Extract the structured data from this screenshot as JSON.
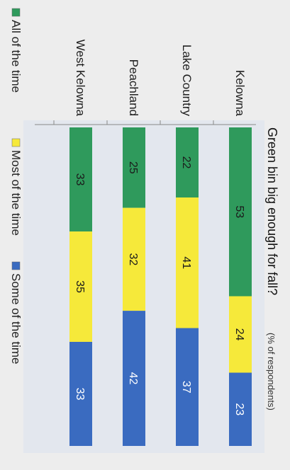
{
  "chart_data": {
    "type": "bar",
    "stacked": true,
    "orientation": "horizontal",
    "title": "Green bin big enough for fall?",
    "subtitle": "(% of respondents)",
    "categories": [
      "Kelowna",
      "Lake Country",
      "Peachland",
      "West Kelowna"
    ],
    "series": [
      {
        "name": "All of the time",
        "color": "#2f9a5c",
        "values": [
          53,
          22,
          25,
          33
        ]
      },
      {
        "name": "Most of the time",
        "color": "#f6e93a",
        "values": [
          24,
          41,
          32,
          35
        ]
      },
      {
        "name": "Some of the time",
        "color": "#3a6bc0",
        "values": [
          23,
          37,
          42,
          33
        ]
      }
    ],
    "legend_position": "bottom",
    "xlim": [
      0,
      100
    ]
  }
}
